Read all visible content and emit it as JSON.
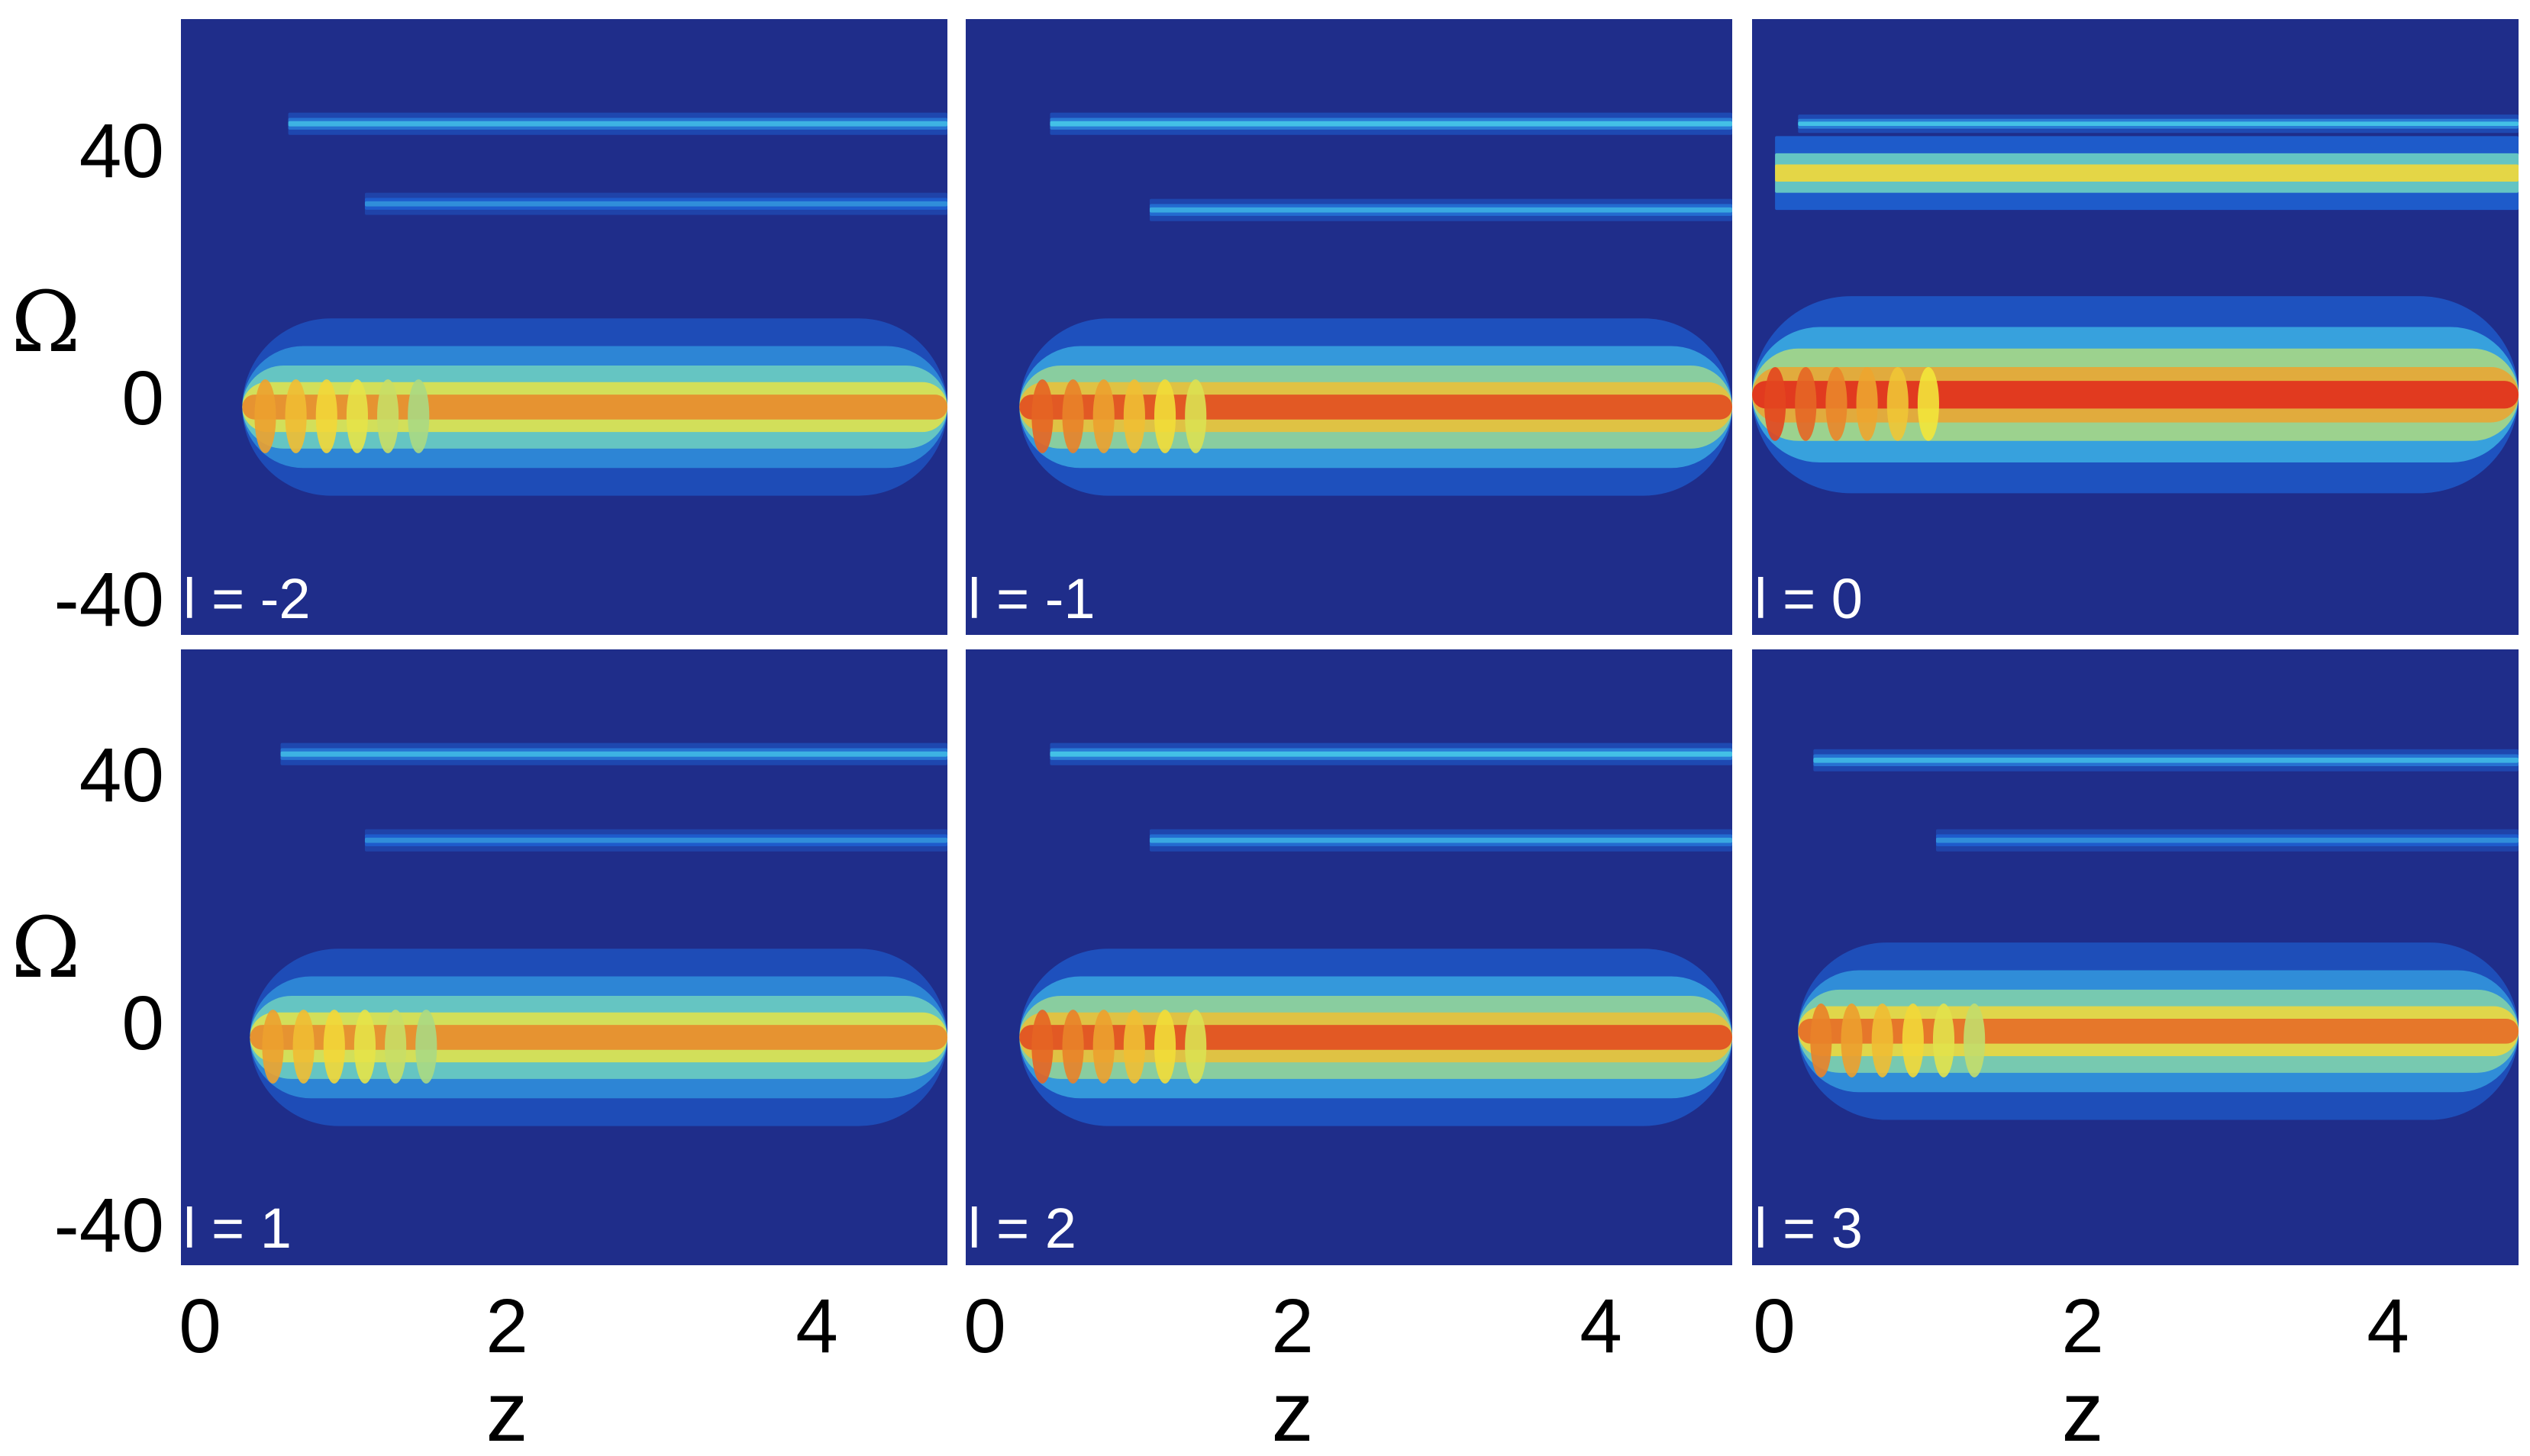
{
  "chart_data": {
    "type": "heatmap",
    "layout": "2x3 grid, shared axes",
    "xlabel": "z",
    "ylabel": "Ω",
    "xlim": [
      0,
      5
    ],
    "ylim": [
      -40,
      60
    ],
    "xticks": [
      "0",
      "2",
      "4"
    ],
    "yticks": [
      "40",
      "0",
      "-40"
    ],
    "colormap": "jet",
    "colors": {
      "background": "#1f2d8a",
      "low": "#1e5fd0",
      "mid": "#46c9e8",
      "high_yellow": "#f3e53a",
      "high_red": "#e0261a"
    },
    "panels": [
      {
        "label": "l = -2",
        "peak": 0.85,
        "features": [
          {
            "omega": 43,
            "z_start": 0.7,
            "z_end": 5,
            "level": 0.42,
            "width": 1.2
          },
          {
            "omega": 30,
            "z_start": 1.2,
            "z_end": 5,
            "level": 0.35,
            "width": 1.2
          },
          {
            "omega": -3,
            "z_start": 0.4,
            "z_end": 5,
            "level": 0.85,
            "width": 9
          }
        ]
      },
      {
        "label": "l = -1",
        "peak": 0.95,
        "features": [
          {
            "omega": 43,
            "z_start": 0.55,
            "z_end": 5,
            "level": 0.45,
            "width": 1.2
          },
          {
            "omega": 29,
            "z_start": 1.2,
            "z_end": 5,
            "level": 0.4,
            "width": 1.2
          },
          {
            "omega": -3,
            "z_start": 0.35,
            "z_end": 5,
            "level": 0.95,
            "width": 9
          }
        ]
      },
      {
        "label": "l = 0",
        "peak": 1.0,
        "features": [
          {
            "omega": 43,
            "z_start": 0.3,
            "z_end": 5,
            "level": 0.45,
            "width": 1.0
          },
          {
            "omega": 35,
            "z_start": 0.15,
            "z_end": 5,
            "level": 0.72,
            "width": 4
          },
          {
            "omega": -1,
            "z_start": 0.0,
            "z_end": 5,
            "level": 1.0,
            "width": 10
          }
        ]
      },
      {
        "label": "l = 1",
        "peak": 0.85,
        "features": [
          {
            "omega": 43,
            "z_start": 0.65,
            "z_end": 5,
            "level": 0.42,
            "width": 1.2
          },
          {
            "omega": 29,
            "z_start": 1.2,
            "z_end": 5,
            "level": 0.35,
            "width": 1.2
          },
          {
            "omega": -3,
            "z_start": 0.45,
            "z_end": 5,
            "level": 0.85,
            "width": 9
          }
        ]
      },
      {
        "label": "l = 2",
        "peak": 0.95,
        "features": [
          {
            "omega": 43,
            "z_start": 0.55,
            "z_end": 5,
            "level": 0.45,
            "width": 1.2
          },
          {
            "omega": 29,
            "z_start": 1.2,
            "z_end": 5,
            "level": 0.4,
            "width": 1.2
          },
          {
            "omega": -3,
            "z_start": 0.35,
            "z_end": 5,
            "level": 0.95,
            "width": 9
          }
        ]
      },
      {
        "label": "l = 3",
        "peak": 0.9,
        "features": [
          {
            "omega": 42,
            "z_start": 0.4,
            "z_end": 5,
            "level": 0.42,
            "width": 1.2
          },
          {
            "omega": 29,
            "z_start": 1.2,
            "z_end": 5,
            "level": 0.35,
            "width": 1.2
          },
          {
            "omega": -2,
            "z_start": 0.3,
            "z_end": 5,
            "level": 0.9,
            "width": 9
          }
        ]
      }
    ]
  }
}
